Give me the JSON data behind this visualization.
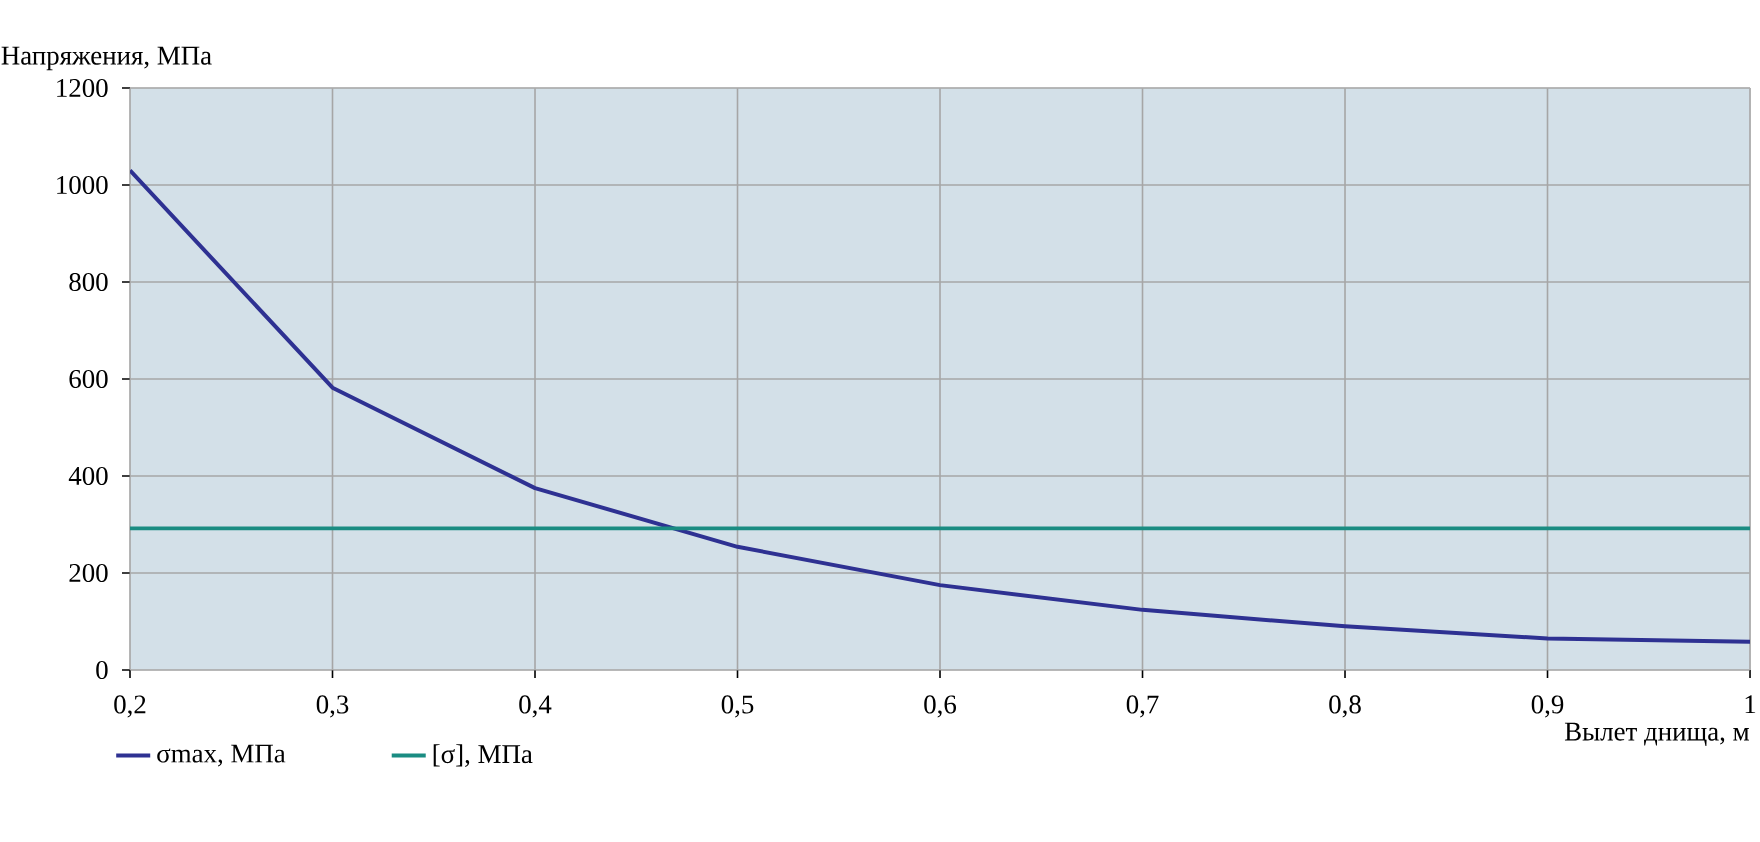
{
  "chart_data": {
    "type": "line",
    "ylabel": "Напряжения, МПа",
    "xlabel": "Вылет днища, м",
    "x": [
      0.2,
      0.3,
      0.4,
      0.5,
      0.6,
      0.7,
      0.8,
      0.9,
      1.0
    ],
    "series": [
      {
        "name": "σmax, МПа",
        "color": "#2e3192",
        "values": [
          1030,
          582,
          375,
          254,
          175,
          124,
          90,
          65,
          58
        ]
      },
      {
        "name": "[σ], МПа",
        "color": "#1a8c82",
        "values": [
          292,
          292,
          292,
          292,
          292,
          292,
          292,
          292,
          292
        ]
      }
    ],
    "xlim": [
      0.2,
      1
    ],
    "ylim": [
      0,
      1200
    ],
    "xticks": [
      {
        "value": 0.2,
        "label": "0,2"
      },
      {
        "value": 0.3,
        "label": "0,3"
      },
      {
        "value": 0.4,
        "label": "0,4"
      },
      {
        "value": 0.5,
        "label": "0,5"
      },
      {
        "value": 0.6,
        "label": "0,6"
      },
      {
        "value": 0.7,
        "label": "0,7"
      },
      {
        "value": 0.8,
        "label": "0,8"
      },
      {
        "value": 0.9,
        "label": "0,9"
      },
      {
        "value": 1,
        "label": "1"
      }
    ],
    "yticks": [
      0,
      200,
      400,
      600,
      800,
      1000,
      1200
    ],
    "grid": true,
    "legend": "bottom left",
    "marker": "none",
    "line_style": "solid"
  }
}
